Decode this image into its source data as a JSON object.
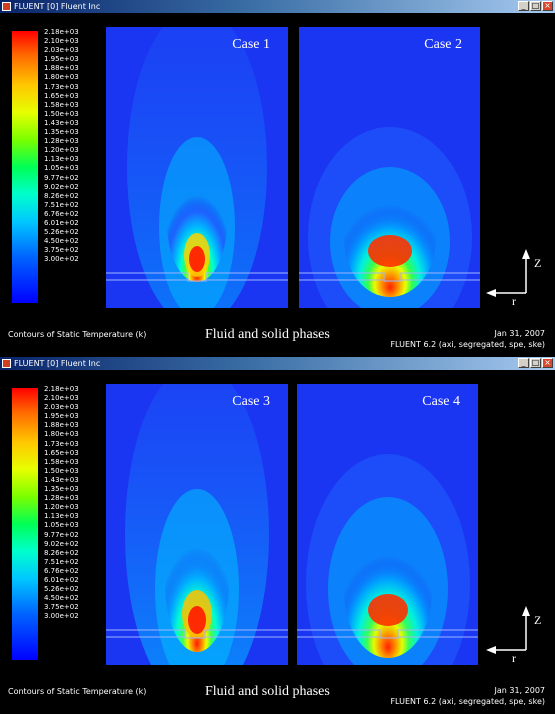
{
  "windows": [
    {
      "title": "FLUENT [0] Fluent Inc",
      "cases": [
        "Case 1",
        "Case 2"
      ],
      "footer": {
        "description": "Contours of Static Temperature (k)",
        "caption": "Fluid and solid phases",
        "date": "Jan 31, 2007",
        "version": "FLUENT 6.2 (axi, segregated, spe, ske)"
      }
    },
    {
      "title": "FLUENT [0] Fluent Inc",
      "cases": [
        "Case 3",
        "Case 4"
      ],
      "footer": {
        "description": "Contours of Static Temperature (k)",
        "caption": "Fluid and solid phases",
        "date": "Jan 31, 2007",
        "version": "FLUENT 6.2 (axi, segregated, spe, ske)"
      }
    }
  ],
  "colorbar_levels": [
    "2.18e+03",
    "2.10e+03",
    "2.03e+03",
    "1.95e+03",
    "1.88e+03",
    "1.80e+03",
    "1.73e+03",
    "1.65e+03",
    "1.58e+03",
    "1.50e+03",
    "1.43e+03",
    "1.35e+03",
    "1.28e+03",
    "1.20e+03",
    "1.13e+03",
    "1.05e+03",
    "9.77e+02",
    "9.02e+02",
    "8.26e+02",
    "7.51e+02",
    "6.76e+02",
    "6.01e+02",
    "5.26e+02",
    "4.50e+02",
    "3.75e+02",
    "3.00e+02"
  ],
  "axis": {
    "vertical": "Z",
    "horizontal": "r"
  },
  "colors": {
    "background": "#000000",
    "domain_blue": "#1b36f2",
    "titlebar": "#0a246a"
  }
}
